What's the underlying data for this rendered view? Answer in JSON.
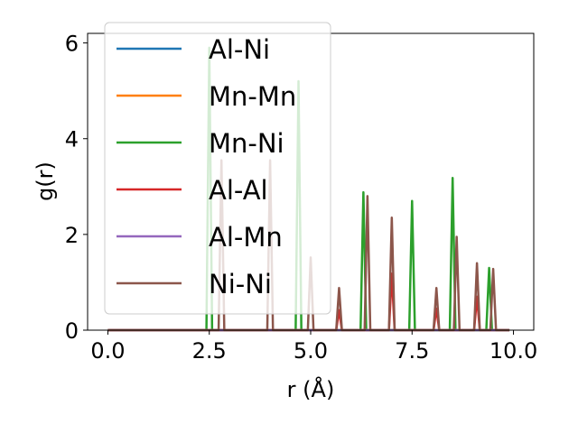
{
  "chart_data": {
    "type": "line",
    "title": "",
    "xlabel": "r (Å)",
    "ylabel": "g(r)",
    "xlim": [
      -0.5,
      10.5
    ],
    "ylim": [
      0,
      6.2
    ],
    "xticks": [
      0.0,
      2.5,
      5.0,
      7.5,
      10.0
    ],
    "xtick_labels": [
      "0.0",
      "2.5",
      "5.0",
      "7.5",
      "10.0"
    ],
    "yticks": [
      0,
      2,
      4,
      6
    ],
    "ytick_labels": [
      "0",
      "2",
      "4",
      "6"
    ],
    "grid": false,
    "legend_position": "upper-left",
    "peak_half_width": 0.07,
    "series": [
      {
        "name": "Al-Ni",
        "color": "#1f77b4",
        "peaks": []
      },
      {
        "name": "Mn-Mn",
        "color": "#ff7f0e",
        "peaks": []
      },
      {
        "name": "Mn-Ni",
        "color": "#2ca02c",
        "peaks": [
          [
            2.5,
            5.9
          ],
          [
            4.7,
            5.2
          ],
          [
            6.3,
            2.88
          ],
          [
            7.5,
            2.7
          ],
          [
            8.5,
            3.18
          ],
          [
            9.4,
            1.3
          ]
        ]
      },
      {
        "name": "Al-Al",
        "color": "#d62728",
        "peaks": [
          [
            5.7,
            0.42
          ],
          [
            7.0,
            1.18
          ],
          [
            8.1,
            0.45
          ],
          [
            9.1,
            0.7
          ]
        ]
      },
      {
        "name": "Al-Mn",
        "color": "#9467bd",
        "peaks": []
      },
      {
        "name": "Ni-Ni",
        "color": "#8c564b",
        "peaks": [
          [
            2.8,
            3.55
          ],
          [
            4.0,
            3.55
          ],
          [
            5.0,
            1.52
          ],
          [
            5.7,
            0.88
          ],
          [
            6.4,
            2.8
          ],
          [
            7.0,
            2.35
          ],
          [
            8.1,
            0.88
          ],
          [
            8.6,
            1.95
          ],
          [
            9.1,
            1.4
          ],
          [
            9.5,
            1.28
          ]
        ]
      }
    ]
  }
}
